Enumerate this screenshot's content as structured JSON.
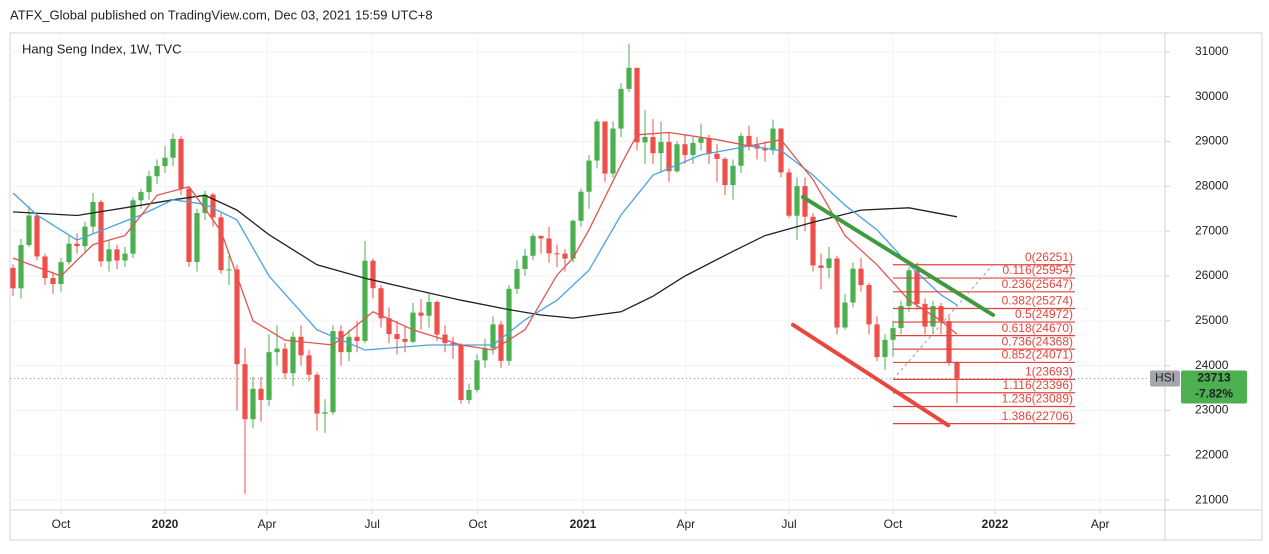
{
  "chart_data": {
    "type": "candlestick",
    "header": "ATFX_Global published on TradingView.com, Dec 03, 2021 15:59 UTC+8",
    "title": "Hang Seng Index, 1W, TVC",
    "up_color": "#4caf50",
    "down_color": "#ef4f4a",
    "xlim": [
      -0.375,
      143.375
    ],
    "ylim": [
      20780,
      31420
    ],
    "xticks": [
      {
        "value": 6,
        "label": "Oct"
      },
      {
        "value": 19,
        "label": "2020"
      },
      {
        "value": 31.75,
        "label": "Apr"
      },
      {
        "value": 44.9,
        "label": "Jul"
      },
      {
        "value": 58.1,
        "label": "Oct"
      },
      {
        "value": 71.25,
        "label": "2021"
      },
      {
        "value": 84.1,
        "label": "Apr"
      },
      {
        "value": 97,
        "label": "Jul"
      },
      {
        "value": 110,
        "label": "Oct"
      },
      {
        "value": 122.75,
        "label": "2022"
      },
      {
        "value": 135.9,
        "label": "Apr"
      }
    ],
    "yticks": [
      21000,
      22000,
      23000,
      24000,
      25000,
      26000,
      27000,
      28000,
      29000,
      30000,
      31000
    ],
    "candles": {
      "open": [
        26180,
        25725,
        26690,
        27350,
        26436,
        25955,
        25821,
        26308,
        26720,
        26667,
        27101,
        27651,
        26327,
        26595,
        26346,
        26498,
        27688,
        27871,
        28225,
        28452,
        28638,
        29056,
        27950,
        26313,
        27404,
        27816,
        27309,
        26130,
        26147,
        24033,
        22805,
        23484,
        23236,
        24300,
        24380,
        23831,
        24644,
        24230,
        23797,
        22930,
        22961,
        24770,
        24301,
        24644,
        24550,
        26339,
        25727,
        25057,
        24705,
        24595,
        24532,
        25183,
        25113,
        25422,
        24695,
        24503,
        24455,
        23235,
        23459,
        24119,
        24387,
        24919,
        24107,
        25713,
        26157,
        26451,
        26894,
        26836,
        26506,
        26498,
        26387,
        27231,
        27879,
        28574,
        29448,
        28284,
        29289,
        30173,
        30644,
        28980,
        29099,
        28740,
        28991,
        28336,
        28939,
        28699,
        28970,
        29079,
        28725,
        28611,
        28028,
        28458,
        29124,
        28918,
        28842,
        28801,
        29288,
        28310,
        27344,
        28005,
        27322,
        26235,
        26180,
        26391,
        24850,
        25408,
        26164,
        25798,
        24920,
        24192,
        24576,
        24838,
        25331,
        26127,
        25377,
        24871,
        25328,
        24991,
        24081
      ],
      "high": [
        26260,
        26830,
        27560,
        27380,
        26500,
        26100,
        26400,
        26900,
        26950,
        27200,
        27850,
        27700,
        26800,
        26700,
        26650,
        27750,
        27950,
        28350,
        28600,
        28900,
        29180,
        29120,
        27980,
        27500,
        27900,
        27850,
        27400,
        26450,
        26250,
        24400,
        23750,
        23750,
        24700,
        24900,
        24500,
        24760,
        24900,
        24350,
        23850,
        23250,
        24900,
        24900,
        24800,
        25000,
        26780,
        26390,
        25800,
        25300,
        25000,
        24900,
        25400,
        25480,
        25600,
        25450,
        24900,
        24650,
        24500,
        23600,
        24250,
        24600,
        25100,
        25000,
        25800,
        26350,
        26600,
        26950,
        26900,
        27100,
        26700,
        26600,
        27260,
        27950,
        28700,
        29500,
        29400,
        29450,
        30300,
        31180,
        30200,
        29700,
        29500,
        29450,
        29200,
        29000,
        29150,
        29100,
        29400,
        29150,
        28950,
        28650,
        28600,
        29200,
        29350,
        29100,
        29000,
        29490,
        29300,
        28400,
        28200,
        28200,
        27400,
        26500,
        26650,
        26450,
        25600,
        26300,
        26400,
        25850,
        25100,
        24700,
        25000,
        25450,
        26200,
        26300,
        25500,
        25450,
        25400,
        25100,
        24100
      ],
      "low": [
        25550,
        25500,
        26650,
        26350,
        25800,
        25600,
        25650,
        26250,
        26500,
        26550,
        26950,
        26200,
        26100,
        26150,
        26200,
        26400,
        27500,
        27700,
        28050,
        28300,
        28450,
        27800,
        26200,
        26100,
        27250,
        27100,
        26050,
        25800,
        23000,
        21140,
        22600,
        22750,
        23100,
        24000,
        23700,
        23550,
        24000,
        23650,
        22550,
        22500,
        22900,
        24000,
        24100,
        24300,
        24500,
        25500,
        24850,
        24500,
        24250,
        24300,
        24500,
        24800,
        24850,
        24550,
        24300,
        24150,
        23150,
        23150,
        23400,
        23950,
        24250,
        23950,
        24000,
        25600,
        26000,
        26350,
        26500,
        26300,
        26200,
        26100,
        26300,
        27100,
        27500,
        28400,
        28100,
        28200,
        29100,
        30100,
        28800,
        28500,
        28500,
        28300,
        28100,
        28300,
        28500,
        28500,
        28800,
        28500,
        28100,
        27800,
        27700,
        28300,
        28800,
        28600,
        28550,
        28700,
        28200,
        27300,
        26800,
        27000,
        26100,
        25700,
        25950,
        24700,
        24800,
        25300,
        25650,
        24700,
        24100,
        23900,
        24200,
        24700,
        25200,
        25250,
        24700,
        24700,
        24700,
        24000,
        23160
      ],
      "close": [
        25725,
        26690,
        27350,
        26436,
        25955,
        25821,
        26308,
        26720,
        26667,
        27101,
        27651,
        26327,
        26595,
        26346,
        26498,
        27688,
        27871,
        28225,
        28452,
        28638,
        29056,
        27950,
        26313,
        27404,
        27816,
        27309,
        26130,
        26147,
        24033,
        22805,
        23484,
        23236,
        24300,
        24380,
        23831,
        24644,
        24230,
        23797,
        22930,
        22961,
        24770,
        24301,
        24644,
        24550,
        26339,
        25727,
        25057,
        24705,
        24595,
        24532,
        25183,
        25113,
        25422,
        24695,
        24503,
        24455,
        23235,
        23459,
        24119,
        24387,
        24919,
        24107,
        25713,
        26157,
        26451,
        26894,
        26836,
        26506,
        26498,
        26387,
        27231,
        27879,
        28574,
        29448,
        28284,
        29289,
        30173,
        30644,
        28980,
        29099,
        28740,
        28991,
        28336,
        28939,
        28699,
        28970,
        29079,
        28725,
        28611,
        28028,
        28458,
        29124,
        28918,
        28842,
        28801,
        29288,
        28310,
        27344,
        28005,
        27322,
        26235,
        26180,
        26391,
        24850,
        25408,
        26164,
        25798,
        24920,
        24192,
        24576,
        24838,
        25331,
        26127,
        25377,
        24871,
        25328,
        24991,
        24081,
        23713
      ]
    },
    "moving_averages": [
      {
        "color": "#222222",
        "x": [
          0,
          8,
          16,
          20,
          24,
          28,
          32,
          38,
          44,
          50,
          56,
          62,
          66,
          70,
          76,
          80,
          84,
          90,
          94,
          100,
          106,
          112,
          118
        ],
        "values": [
          27430,
          27350,
          27580,
          27700,
          27800,
          27470,
          26920,
          26250,
          25950,
          25700,
          25460,
          25250,
          25130,
          25060,
          25200,
          25550,
          26000,
          26550,
          26900,
          27200,
          27470,
          27520,
          27320
        ]
      },
      {
        "color": "#4aa3df",
        "x": [
          0,
          3,
          8,
          16,
          20,
          24,
          28,
          32,
          38,
          44,
          52,
          60,
          64,
          68,
          72,
          76,
          80,
          86,
          92,
          96,
          100,
          104,
          108,
          112,
          116,
          118
        ],
        "values": [
          27850,
          27360,
          26800,
          27360,
          27700,
          27600,
          27250,
          26000,
          24800,
          24350,
          24460,
          24460,
          25020,
          25460,
          26130,
          27360,
          28250,
          28700,
          28900,
          28800,
          28250,
          27580,
          27030,
          26250,
          25580,
          25350
        ]
      },
      {
        "color": "#e0564b",
        "x": [
          0,
          6,
          10,
          14,
          18,
          22,
          26,
          30,
          34,
          40,
          45,
          50,
          56,
          60,
          64,
          68,
          70,
          72,
          76,
          78,
          82,
          88,
          92,
          96,
          100,
          104,
          108,
          112,
          116,
          118
        ],
        "values": [
          26400,
          26000,
          26700,
          26900,
          27800,
          27990,
          27000,
          25000,
          24570,
          24460,
          25200,
          24800,
          24460,
          24350,
          24800,
          26020,
          26400,
          27030,
          28480,
          29150,
          29200,
          29040,
          28900,
          29040,
          28150,
          26900,
          26250,
          25460,
          25000,
          24700
        ]
      }
    ],
    "trendlines": [
      {
        "color": "#3d9a3d",
        "x": [
          98.75,
          122.5
        ],
        "values": [
          27760,
          25130
        ]
      },
      {
        "color": "#e8473f",
        "x": [
          97.5,
          116.9
        ],
        "values": [
          24910,
          22670
        ]
      }
    ],
    "fib": {
      "color": "#e0453d",
      "x": [
        110,
        132.75
      ],
      "levels": [
        {
          "value": 26251,
          "label": "0(26251)"
        },
        {
          "value": 25954,
          "label": "0.116(25954)"
        },
        {
          "value": 25647,
          "label": "0.236(25647)"
        },
        {
          "value": 25274,
          "label": "0.382(25274)"
        },
        {
          "value": 24972,
          "label": "0.5(24972)"
        },
        {
          "value": 24670,
          "label": "0.618(24670)"
        },
        {
          "value": 24368,
          "label": "0.736(24368)"
        },
        {
          "value": 24071,
          "label": "0.852(24071)"
        },
        {
          "value": 23693,
          "label": "1(23693)"
        },
        {
          "value": 23396,
          "label": "1.116(23396)"
        },
        {
          "value": 23089,
          "label": "1.236(23089)"
        },
        {
          "value": 22706,
          "label": "1.386(22706)"
        }
      ]
    },
    "last_price": {
      "symbol": "HSI",
      "value": 23713,
      "change": {
        "value": -7.82,
        "label": "-7.82%"
      },
      "color": "#4caf50"
    }
  }
}
